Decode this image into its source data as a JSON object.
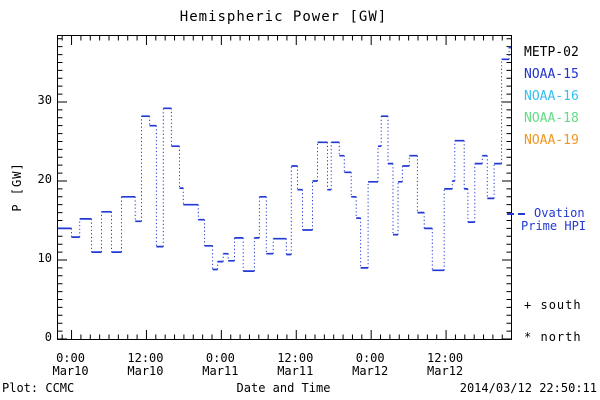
{
  "title": "Hemispheric Power [GW]",
  "footer": {
    "credit": "Plot: CCMC",
    "timestamp": "2014/03/12 22:50:11"
  },
  "axes": {
    "y_title": "P [GW]",
    "x_title": "Date and Time",
    "y_tick_labels": [
      "0",
      "10",
      "20",
      "30"
    ],
    "x_tick_labels": [
      {
        "time": "0:00",
        "date": "Mar10"
      },
      {
        "time": "12:00",
        "date": "Mar10"
      },
      {
        "time": "0:00",
        "date": "Mar11"
      },
      {
        "time": "12:00",
        "date": "Mar11"
      },
      {
        "time": "0:00",
        "date": "Mar12"
      },
      {
        "time": "12:00",
        "date": "Mar12"
      }
    ]
  },
  "legend": {
    "satellites": [
      {
        "label": "METP-02",
        "color": "#000000"
      },
      {
        "label": "NOAA-15",
        "color": "#2233cc"
      },
      {
        "label": "NOAA-16",
        "color": "#33bfef"
      },
      {
        "label": "NOAA-18",
        "color": "#63da85"
      },
      {
        "label": "NOAA-19",
        "color": "#ef9722"
      }
    ],
    "line_entry": {
      "line1": "Ovation",
      "line2": "Prime HPI",
      "color": "#2239d4"
    },
    "markers": [
      {
        "symbol": "+",
        "label": "south"
      },
      {
        "symbol": "*",
        "label": "north"
      }
    ]
  },
  "chart_data": {
    "type": "line",
    "style": "step-plot, solid horizontal levels with dotted vertical connectors",
    "series_name": "Ovation Prime HPI",
    "line_color": "#2239d4",
    "title": "Hemispheric Power [GW]",
    "xlabel": "Date and Time",
    "ylabel": "P [GW]",
    "x_units": "hours since 2014-03-10 00:00 UT",
    "xlim_hours": [
      -2.17,
      70.4
    ],
    "ylim": [
      0,
      38.35
    ],
    "y_major_ticks": [
      0,
      10,
      20,
      30
    ],
    "y_minor_step": 1,
    "x_major_ticks_hours": [
      0,
      12,
      24,
      36,
      48,
      60
    ],
    "x_minor_step_hours": 1.5,
    "grid": false,
    "legend_position": "right margin",
    "steps_t_hours_value_gw": [
      [
        -2.17,
        14.0
      ],
      [
        0.0,
        12.9
      ],
      [
        1.3,
        15.2
      ],
      [
        3.2,
        11.0
      ],
      [
        4.8,
        16.1
      ],
      [
        6.4,
        11.0
      ],
      [
        8.0,
        18.0
      ],
      [
        10.2,
        14.9
      ],
      [
        11.2,
        28.2
      ],
      [
        12.5,
        27.0
      ],
      [
        13.6,
        11.7
      ],
      [
        14.7,
        29.2
      ],
      [
        16.0,
        24.4
      ],
      [
        17.3,
        19.1
      ],
      [
        17.9,
        17.0
      ],
      [
        20.3,
        15.1
      ],
      [
        21.3,
        11.8
      ],
      [
        22.6,
        8.8
      ],
      [
        23.4,
        9.8
      ],
      [
        24.3,
        10.8
      ],
      [
        25.1,
        9.9
      ],
      [
        26.1,
        12.8
      ],
      [
        27.5,
        8.6
      ],
      [
        29.3,
        12.8
      ],
      [
        30.1,
        18.0
      ],
      [
        31.2,
        10.8
      ],
      [
        32.3,
        12.7
      ],
      [
        34.4,
        10.7
      ],
      [
        35.2,
        21.9
      ],
      [
        36.2,
        18.9
      ],
      [
        37.0,
        13.8
      ],
      [
        38.6,
        20.0
      ],
      [
        39.4,
        24.9
      ],
      [
        41.0,
        18.9
      ],
      [
        41.6,
        24.9
      ],
      [
        42.9,
        23.2
      ],
      [
        43.7,
        21.1
      ],
      [
        44.8,
        18.0
      ],
      [
        45.6,
        15.3
      ],
      [
        46.3,
        9.0
      ],
      [
        47.5,
        19.9
      ],
      [
        49.1,
        24.4
      ],
      [
        49.6,
        28.2
      ],
      [
        50.7,
        22.2
      ],
      [
        51.5,
        13.2
      ],
      [
        52.3,
        19.9
      ],
      [
        53.0,
        21.9
      ],
      [
        54.1,
        23.2
      ],
      [
        55.4,
        16.0
      ],
      [
        56.5,
        14.0
      ],
      [
        57.8,
        8.7
      ],
      [
        59.7,
        19.0
      ],
      [
        61.0,
        20.0
      ],
      [
        61.4,
        25.1
      ],
      [
        62.9,
        19.0
      ],
      [
        63.5,
        14.8
      ],
      [
        64.6,
        22.2
      ],
      [
        65.8,
        23.2
      ],
      [
        66.6,
        17.8
      ],
      [
        67.7,
        22.2
      ],
      [
        68.9,
        35.4
      ],
      [
        70.1,
        36.9
      ]
    ]
  }
}
